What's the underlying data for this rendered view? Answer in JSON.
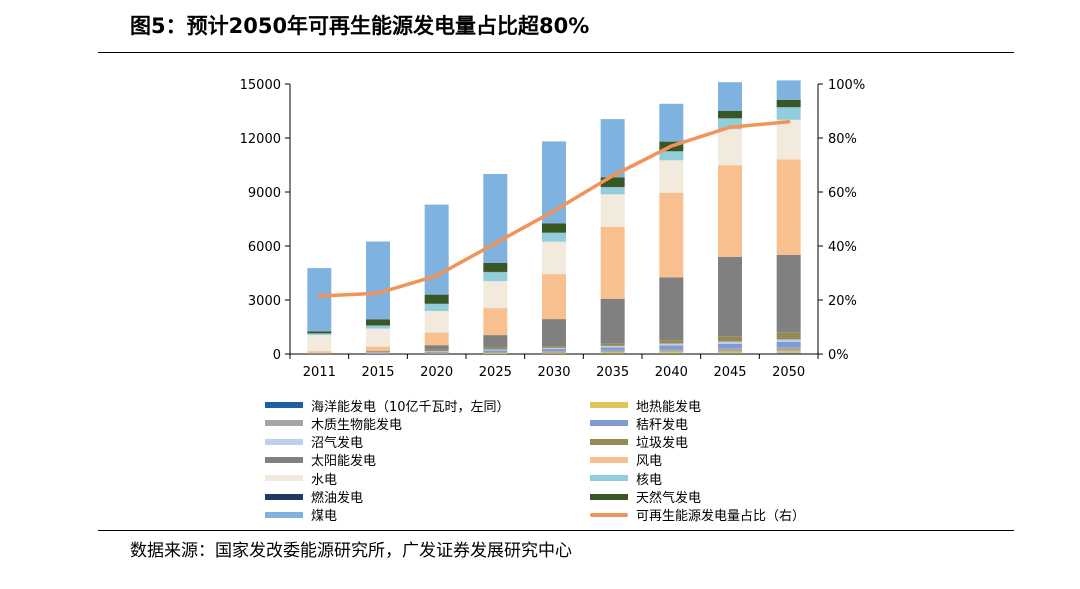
{
  "title": "图5：预计2050年可再生能源发电量占比超80%",
  "source": "数据来源：国家发改委能源研究所，广发证券发展研究中心",
  "chart_data": {
    "type": "bar",
    "stacked": true,
    "categories": [
      "2011",
      "2015",
      "2020",
      "2025",
      "2030",
      "2035",
      "2040",
      "2045",
      "2050"
    ],
    "y_left": {
      "min": 0,
      "max": 15000,
      "ticks": [
        "0",
        "3000",
        "6000",
        "9000",
        "12000",
        "15000"
      ]
    },
    "y_right": {
      "min": 0,
      "max": 100,
      "ticks": [
        "0%",
        "20%",
        "40%",
        "60%",
        "80%",
        "100%"
      ]
    },
    "series": [
      {
        "name": "海洋能发电（10亿千瓦时，左同）",
        "color": "#1f5fa6",
        "values": [
          0,
          0,
          0,
          0,
          10,
          20,
          30,
          40,
          50
        ]
      },
      {
        "name": "地热能发电",
        "color": "#e3c45a",
        "values": [
          0,
          0,
          20,
          30,
          50,
          70,
          90,
          100,
          120
        ]
      },
      {
        "name": "木质生物能发电",
        "color": "#a6a6a6",
        "values": [
          10,
          30,
          50,
          80,
          100,
          130,
          160,
          180,
          200
        ]
      },
      {
        "name": "秸秆发电",
        "color": "#7f9bd2",
        "values": [
          20,
          40,
          60,
          90,
          120,
          150,
          200,
          250,
          300
        ]
      },
      {
        "name": "沼气发电",
        "color": "#bdd0ea",
        "values": [
          10,
          20,
          30,
          50,
          60,
          80,
          100,
          120,
          140
        ]
      },
      {
        "name": "垃圾发电",
        "color": "#948a54",
        "values": [
          20,
          50,
          80,
          100,
          100,
          120,
          180,
          300,
          400
        ]
      },
      {
        "name": "太阳能发电",
        "color": "#808080",
        "values": [
          0,
          20,
          250,
          700,
          1500,
          2500,
          3500,
          4400,
          4300
        ]
      },
      {
        "name": "风电",
        "color": "#f9c08f",
        "values": [
          100,
          250,
          700,
          1500,
          2500,
          4000,
          4700,
          5100,
          5300
        ]
      },
      {
        "name": "水电",
        "color": "#f2ebdd",
        "values": [
          900,
          1000,
          1200,
          1500,
          1800,
          1800,
          1800,
          2000,
          2200
        ]
      },
      {
        "name": "核电",
        "color": "#92cddc",
        "values": [
          80,
          170,
          400,
          500,
          500,
          400,
          500,
          600,
          700
        ]
      },
      {
        "name": "燃油发电",
        "color": "#1f3864",
        "values": [
          10,
          10,
          10,
          10,
          10,
          10,
          10,
          10,
          10
        ]
      },
      {
        "name": "天然气发电",
        "color": "#385723",
        "values": [
          110,
          340,
          500,
          500,
          500,
          540,
          530,
          400,
          400
        ]
      },
      {
        "name": "煤电",
        "color": "#7fb2df",
        "values": [
          3510,
          4320,
          5000,
          4940,
          4560,
          3230,
          2100,
          1600,
          1080
        ]
      }
    ],
    "line_series": {
      "name": "可再生能源发电量占比（右）",
      "color": "#f0945a",
      "axis": "right",
      "values": [
        21.5,
        22.5,
        29,
        41,
        53,
        66,
        77,
        84,
        86
      ]
    }
  }
}
